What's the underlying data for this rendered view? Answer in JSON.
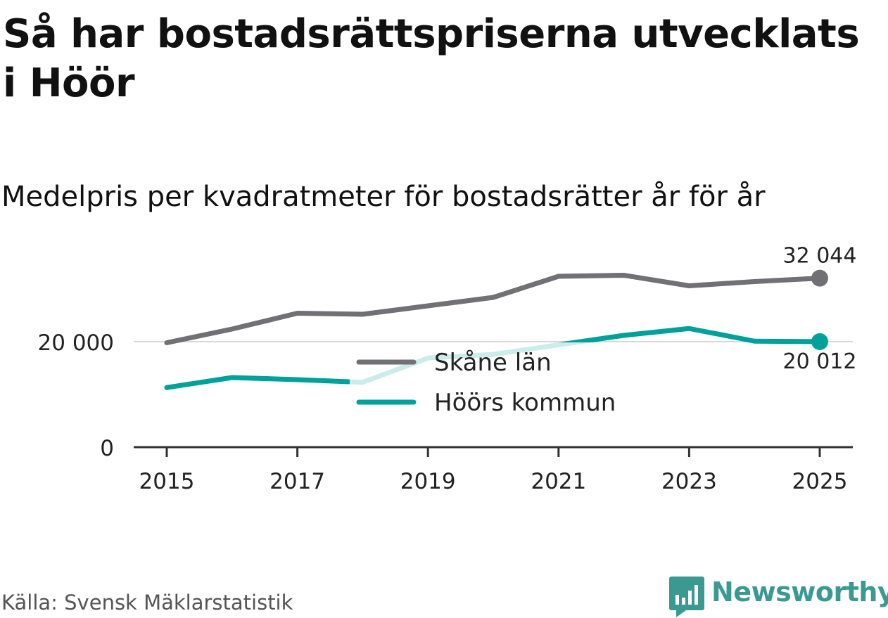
{
  "title": "Så har bostadsrättspriserna utvecklats i Höör",
  "subtitle": "Medelpris per kvadratmeter för bostadsrätter år för år",
  "source": "Källa: Svensk Mäklarstatistik",
  "brand": "Newsworthy",
  "chart_data": {
    "type": "line",
    "x": [
      2015,
      2016,
      2017,
      2018,
      2019,
      2020,
      2021,
      2022,
      2023,
      2024,
      2025
    ],
    "ylim": [
      0,
      36000
    ],
    "y_ticks": [
      {
        "value": 0,
        "label": "0"
      },
      {
        "value": 20000,
        "label": "20 000"
      }
    ],
    "x_ticks": [
      {
        "value": 2015,
        "label": "2015"
      },
      {
        "value": 2017,
        "label": "2017"
      },
      {
        "value": 2019,
        "label": "2019"
      },
      {
        "value": 2021,
        "label": "2021"
      },
      {
        "value": 2023,
        "label": "2023"
      },
      {
        "value": 2025,
        "label": "2025"
      }
    ],
    "series": [
      {
        "name": "Skåne län",
        "color": "#707075",
        "values": [
          19800,
          22400,
          25400,
          25200,
          26800,
          28400,
          32400,
          32600,
          30600,
          31400,
          32044
        ],
        "end_label": "32 044"
      },
      {
        "name": "Höörs kommun",
        "color": "#00a19a",
        "values": [
          11300,
          13200,
          12800,
          12300,
          16900,
          17600,
          19400,
          21200,
          22500,
          20100,
          20012
        ],
        "end_label": "20 012"
      }
    ],
    "legend_position": "center",
    "grid": true
  }
}
